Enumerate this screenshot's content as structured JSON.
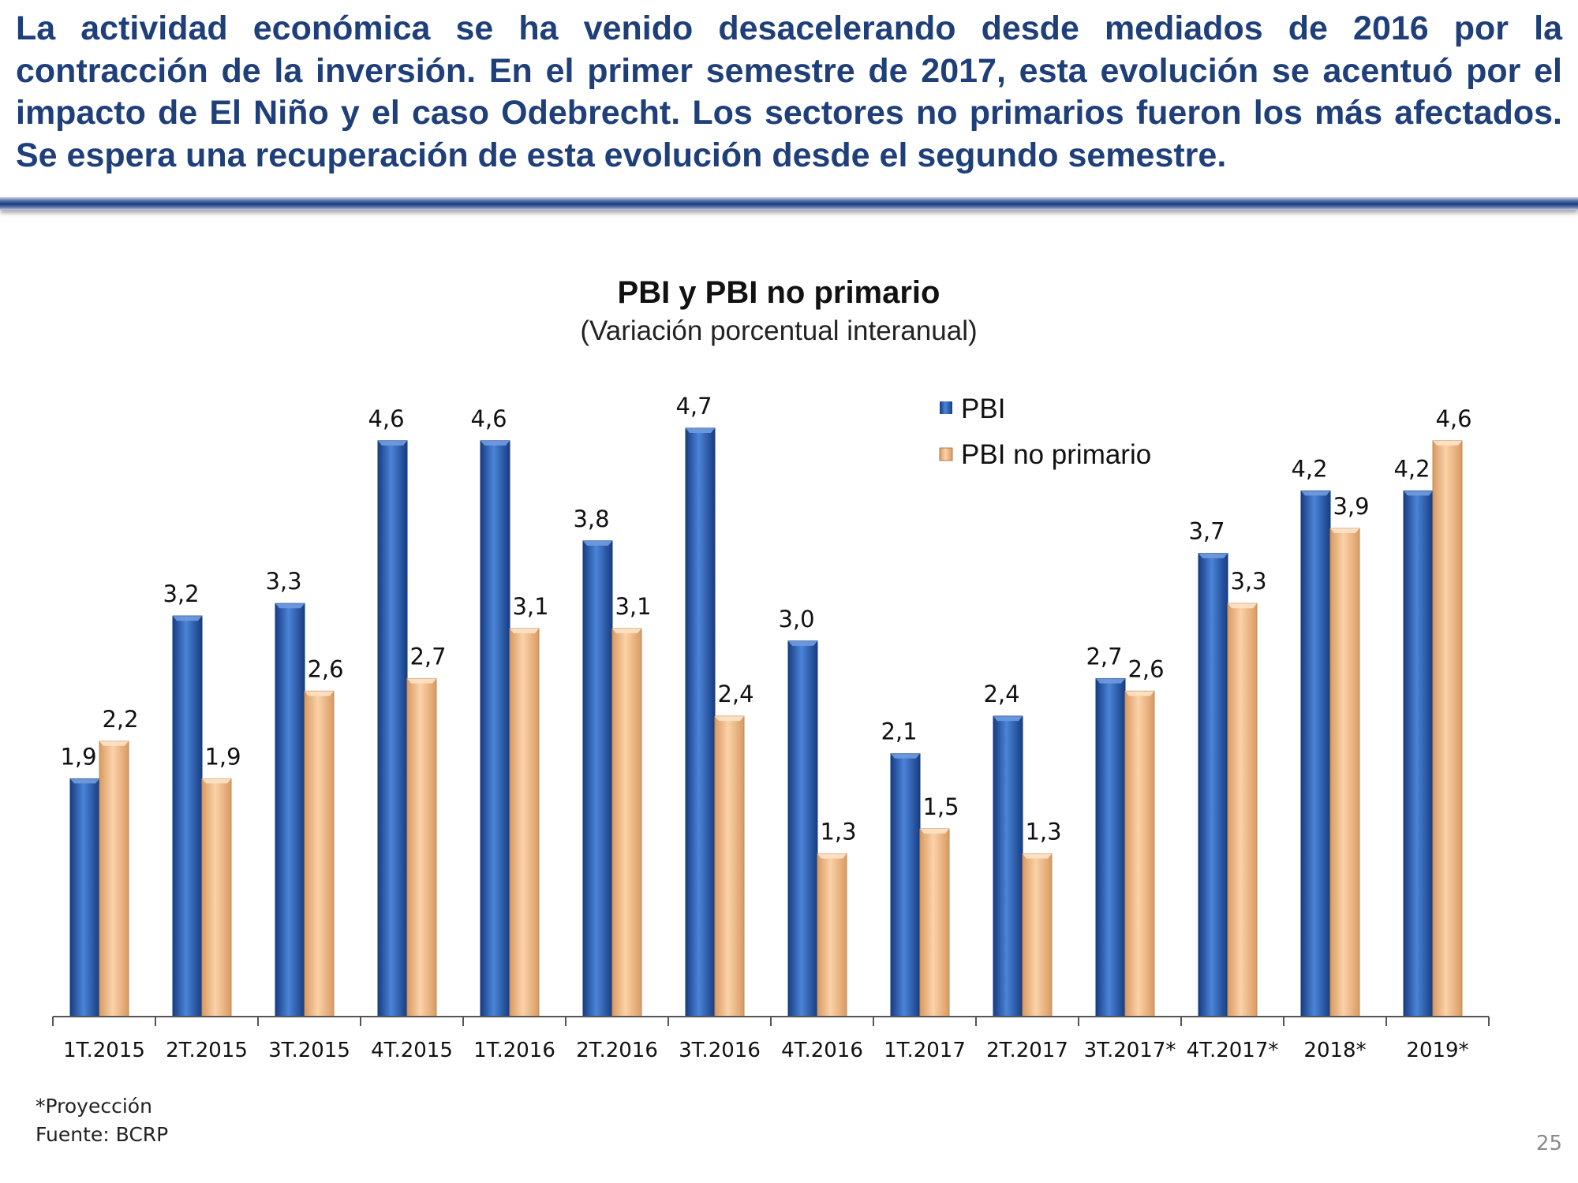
{
  "headline": "La actividad económica se ha venido desacelerando desde mediados de 2016 por la contracción de la inversión. En el primer semestre de 2017, esta evolución se acentuó por el impacto de El Niño y el caso Odebrecht. Los sectores no primarios fueron los más afectados. Se espera una recuperación de esta evolución desde el segundo semestre.",
  "chart_data": {
    "type": "bar",
    "title": "PBI y PBI no primario",
    "subtitle": "(Variación porcentual interanual)",
    "categories": [
      "1T.2015",
      "2T.2015",
      "3T.2015",
      "4T.2015",
      "1T.2016",
      "2T.2016",
      "3T.2016",
      "4T.2016",
      "1T.2017",
      "2T.2017",
      "3T.2017*",
      "4T.2017*",
      "2018*",
      "2019*"
    ],
    "series": [
      {
        "name": "PBI",
        "values": [
          1.9,
          3.2,
          3.3,
          4.6,
          4.6,
          3.8,
          4.7,
          3.0,
          2.1,
          2.4,
          2.7,
          3.7,
          4.2,
          4.2
        ],
        "labels": [
          "1,9",
          "3,2",
          "3,3",
          "4,6",
          "4,6",
          "3,8",
          "4,7",
          "3,0",
          "2,1",
          "2,4",
          "2,7",
          "3,7",
          "4,2",
          "4,2"
        ],
        "color": "#2e62b8"
      },
      {
        "name": "PBI no primario",
        "values": [
          2.2,
          1.9,
          2.6,
          2.7,
          3.1,
          3.1,
          2.4,
          1.3,
          1.5,
          1.3,
          2.6,
          3.3,
          3.9,
          4.6
        ],
        "labels": [
          "2,2",
          "1,9",
          "2,6",
          "2,7",
          "3,1",
          "3,1",
          "2,4",
          "1,3",
          "1,5",
          "1,3",
          "2,6",
          "3,3",
          "3,9",
          "4,6"
        ],
        "color": "#f5c08f"
      }
    ],
    "ylim": [
      0,
      4.7
    ],
    "grid": false,
    "legend": "top-center"
  },
  "notes": {
    "projection": "*Proyección",
    "source": "Fuente: BCRP"
  },
  "page_number": "25"
}
